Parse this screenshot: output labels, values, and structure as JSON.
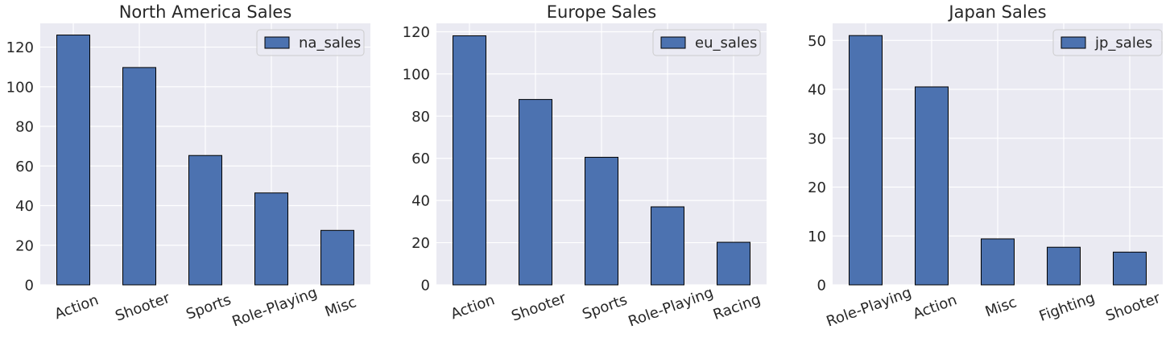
{
  "colors": {
    "plot_background": "#eaeaf2",
    "grid": "#ffffff",
    "bar_fill": "#4c72b0",
    "bar_edge": "#000000",
    "text": "#262626"
  },
  "chart_data": [
    {
      "type": "bar",
      "title": "North America Sales",
      "categories": [
        "Action",
        "Shooter",
        "Sports",
        "Role-Playing",
        "Misc"
      ],
      "series": [
        {
          "name": "na_sales",
          "values": [
            126.1,
            109.7,
            65.3,
            46.4,
            27.5
          ]
        }
      ],
      "ylim": [
        0,
        132
      ],
      "yticks": [
        0,
        20,
        40,
        60,
        80,
        100,
        120
      ],
      "ytick_labels": [
        "0",
        "20",
        "40",
        "60",
        "80",
        "100",
        "120"
      ],
      "grid": true,
      "legend": "top-right"
    },
    {
      "type": "bar",
      "title": "Europe Sales",
      "categories": [
        "Action",
        "Shooter",
        "Sports",
        "Role-Playing",
        "Racing"
      ],
      "series": [
        {
          "name": "eu_sales",
          "values": [
            118.1,
            87.9,
            60.5,
            37.0,
            20.2
          ]
        }
      ],
      "ylim": [
        0,
        124
      ],
      "yticks": [
        0,
        20,
        40,
        60,
        80,
        100,
        120
      ],
      "ytick_labels": [
        "0",
        "20",
        "40",
        "60",
        "80",
        "100",
        "120"
      ],
      "grid": true,
      "legend": "top-right"
    },
    {
      "type": "bar",
      "title": "Japan Sales",
      "categories": [
        "Role-Playing",
        "Action",
        "Misc",
        "Fighting",
        "Shooter"
      ],
      "series": [
        {
          "name": "jp_sales",
          "values": [
            51.0,
            40.5,
            9.4,
            7.7,
            6.7
          ]
        }
      ],
      "ylim": [
        0,
        53.5
      ],
      "yticks": [
        0,
        10,
        20,
        30,
        40,
        50
      ],
      "ytick_labels": [
        "0",
        "10",
        "20",
        "30",
        "40",
        "50"
      ],
      "grid": true,
      "legend": "top-right"
    }
  ]
}
